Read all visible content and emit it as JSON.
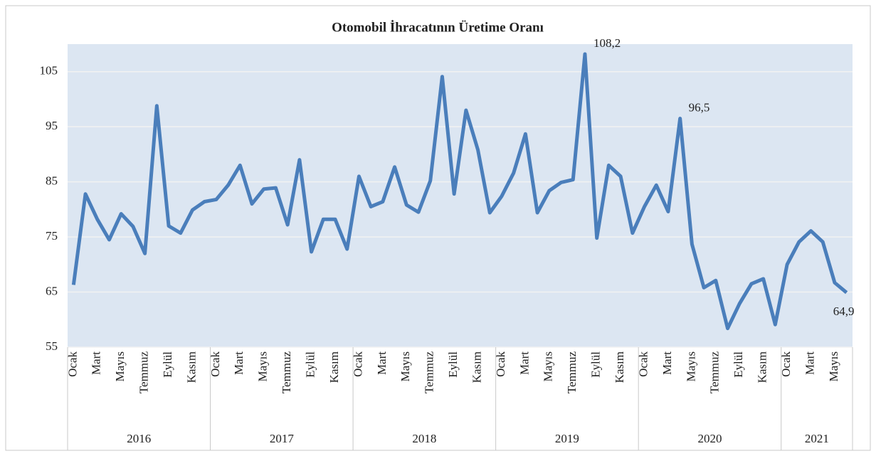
{
  "chart_data": {
    "type": "line",
    "title": "Otomobil İhracatının Üretime Oranı",
    "categories": [
      "Ocak",
      null,
      "Mart",
      null,
      "Mayıs",
      null,
      "Temmuz",
      null,
      "Eylül",
      null,
      "Kasım",
      null,
      "Ocak",
      null,
      "Mart",
      null,
      "Mayıs",
      null,
      "Temmuz",
      null,
      "Eylül",
      null,
      "Kasım",
      null,
      "Ocak",
      null,
      "Mart",
      null,
      "Mayıs",
      null,
      "Temmuz",
      null,
      "Eylül",
      null,
      "Kasım",
      null,
      "Ocak",
      null,
      "Mart",
      null,
      "Mayıs",
      null,
      "Temmuz",
      null,
      "Eylül",
      null,
      "Kasım",
      null,
      "Ocak",
      null,
      "Mart",
      null,
      "Mayıs",
      null,
      "Temmuz",
      null,
      "Eylül",
      null,
      "Kasım",
      null,
      "Ocak",
      null,
      "Mart",
      null,
      "Mayıs",
      null
    ],
    "years": [
      "2016",
      "2017",
      "2018",
      "2019",
      "2020",
      "2021"
    ],
    "values": [
      66.3,
      82.8,
      78.2,
      74.5,
      79.2,
      76.9,
      72.0,
      98.8,
      77.0,
      75.7,
      79.9,
      81.4,
      81.8,
      84.4,
      88.0,
      81.0,
      83.7,
      83.9,
      77.2,
      89.0,
      72.3,
      78.2,
      78.2,
      72.8,
      86.0,
      80.5,
      81.4,
      87.7,
      80.8,
      79.5,
      85.2,
      104.1,
      82.8,
      98.0,
      90.8,
      79.4,
      82.4,
      86.6,
      93.7,
      79.4,
      83.4,
      84.9,
      85.4,
      108.2,
      74.8,
      88.0,
      86.0,
      75.7,
      80.5,
      84.4,
      79.6,
      96.5,
      73.7,
      65.8,
      67.1,
      58.4,
      62.9,
      66.5,
      67.4,
      59.1,
      70.0,
      74.1,
      76.1,
      74.1,
      66.7,
      64.9
    ],
    "value_labels": [
      null,
      null,
      null,
      null,
      null,
      null,
      null,
      null,
      null,
      null,
      null,
      null,
      null,
      null,
      null,
      null,
      null,
      null,
      null,
      null,
      null,
      null,
      null,
      null,
      null,
      null,
      null,
      null,
      null,
      null,
      null,
      null,
      null,
      null,
      null,
      null,
      null,
      null,
      null,
      null,
      null,
      null,
      null,
      "108,2",
      null,
      null,
      null,
      null,
      null,
      null,
      null,
      "96,5",
      null,
      null,
      null,
      null,
      null,
      null,
      null,
      null,
      null,
      null,
      null,
      null,
      null,
      "64,9"
    ],
    "color": "#4a7ebb",
    "ylim": [
      55,
      110
    ],
    "yticks": [
      55,
      65,
      75,
      85,
      95,
      105
    ],
    "grid": true
  }
}
